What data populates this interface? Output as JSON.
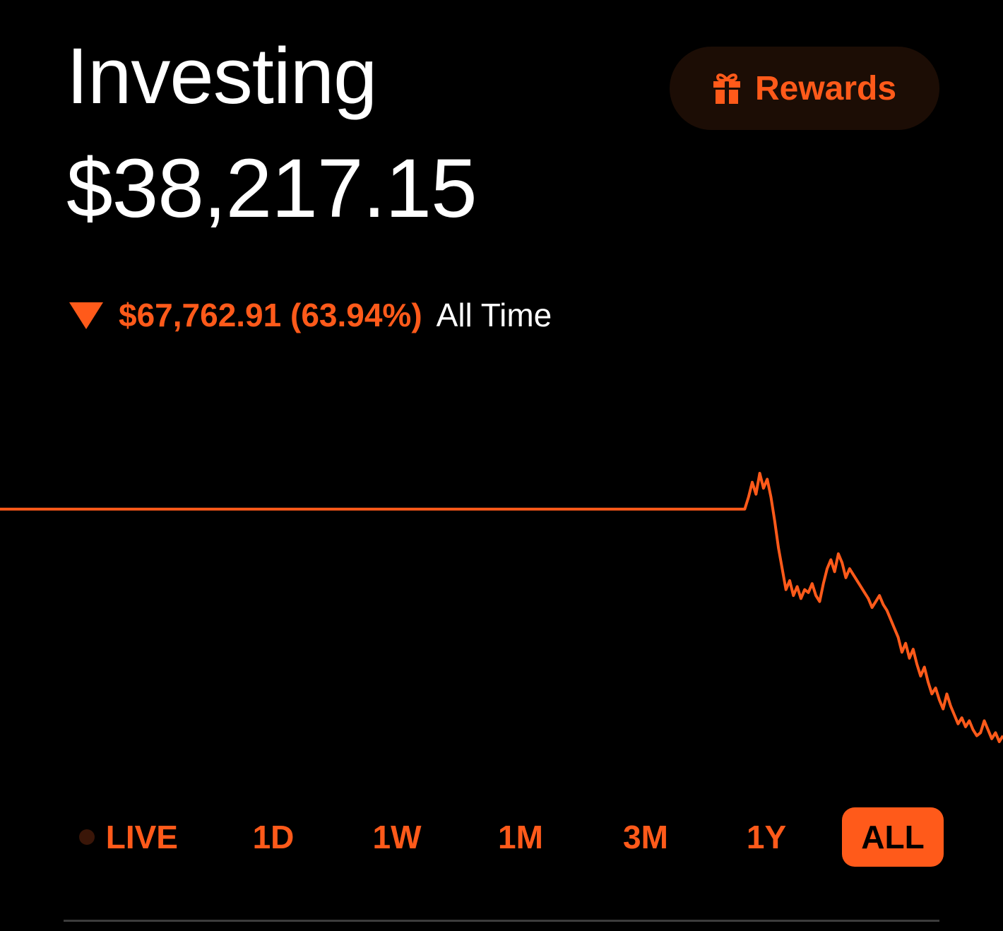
{
  "header": {
    "title": "Investing",
    "balance": "$38,217.15"
  },
  "rewards": {
    "label": "Rewards",
    "icon": "gift-icon"
  },
  "change": {
    "direction_icon": "triangle-down-icon",
    "value": "$67,762.91 (63.94%)",
    "period": "All Time"
  },
  "colors": {
    "accent": "#ff5a1a",
    "background": "#000000",
    "rewards_bg": "#1c0d05",
    "divider": "#3c3c3c"
  },
  "ranges": {
    "live": "LIVE",
    "items": [
      "1D",
      "1W",
      "1M",
      "3M",
      "1Y",
      "ALL"
    ],
    "selected": "ALL"
  },
  "chart_data": {
    "type": "line",
    "x_label": "",
    "y_label": "",
    "axes_visible": false,
    "grid": false,
    "color": "#ff5a1a",
    "series": [
      {
        "values": [
          100,
          100,
          100,
          100,
          100,
          100,
          100,
          100,
          100,
          100,
          100,
          100,
          100,
          100,
          100,
          100,
          100,
          100,
          100,
          100,
          100,
          100,
          100,
          100,
          100,
          100,
          100,
          100,
          100,
          100,
          100,
          100,
          100,
          100,
          100,
          100,
          100,
          100,
          100,
          100,
          100,
          100,
          100,
          100,
          100,
          100,
          100,
          100,
          100,
          100,
          100,
          100,
          100,
          100,
          100,
          100,
          100,
          100,
          100,
          100,
          100,
          100,
          100,
          100,
          100,
          100,
          100,
          100,
          100,
          100,
          100,
          100,
          100,
          100,
          100,
          100,
          100,
          100,
          100,
          100,
          100,
          100,
          100,
          100,
          100,
          100,
          100,
          100,
          100,
          100,
          100,
          100,
          100,
          100,
          100,
          100,
          100,
          100,
          100,
          100,
          100,
          100,
          100,
          100,
          100,
          100,
          100,
          100,
          100,
          100,
          100,
          100,
          100,
          100,
          100,
          100,
          100,
          100,
          100,
          100,
          100,
          100,
          100,
          100,
          100,
          100,
          100,
          100,
          100,
          100,
          100,
          100,
          100,
          100,
          100,
          100,
          100,
          100,
          100,
          100,
          100,
          100,
          100,
          100,
          100,
          100,
          100,
          100,
          100,
          100,
          100,
          100,
          100,
          100,
          100,
          100,
          100,
          100,
          100,
          100,
          100,
          100,
          100,
          100,
          100,
          100,
          100,
          100,
          100,
          100,
          100,
          100,
          100,
          100,
          100,
          100,
          100,
          100,
          100,
          100,
          100,
          100,
          100,
          100,
          100,
          100,
          100,
          100,
          100,
          100,
          100,
          100,
          100,
          100,
          100,
          100,
          100,
          100,
          100,
          100,
          104,
          109,
          105,
          112,
          107,
          110,
          104,
          96,
          87,
          80,
          73,
          76,
          71,
          74,
          70,
          73,
          72,
          75,
          71,
          69,
          75,
          80,
          83,
          79,
          85,
          82,
          77,
          80,
          78,
          76,
          74,
          72,
          70,
          67,
          69,
          71,
          68,
          66,
          63,
          60,
          57,
          52,
          55,
          50,
          53,
          48,
          44,
          47,
          42,
          38,
          40,
          36,
          33,
          38,
          34,
          31,
          28,
          30,
          27,
          29,
          26,
          24,
          25,
          29,
          26,
          23,
          25,
          22,
          24
        ]
      }
    ]
  }
}
